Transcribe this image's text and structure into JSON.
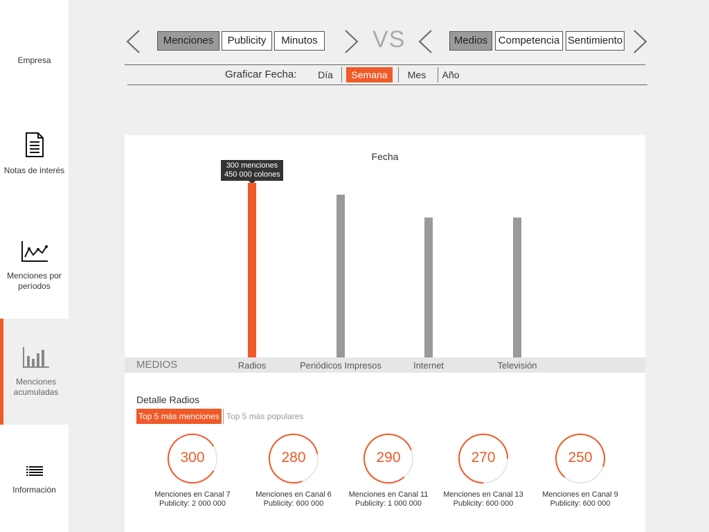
{
  "sidebar": {
    "items": [
      {
        "label": "Empresa"
      },
      {
        "label": "Notas de interés",
        "icon": "document-icon"
      },
      {
        "label": "Menciones por períodos",
        "icon": "line-chart-icon"
      },
      {
        "label": "Menciones acumuladas",
        "icon": "bar-chart-icon",
        "active": true
      },
      {
        "label": "Información",
        "icon": "list-icon"
      }
    ]
  },
  "toggles": {
    "left_group": [
      "Menciones",
      "Publicity",
      "Minutos"
    ],
    "left_selected": "Menciones",
    "vs_label": "VS",
    "right_group": [
      "Medios",
      "Competencia",
      "Sentimiento"
    ],
    "right_selected": "Medios"
  },
  "date_filter": {
    "label": "Graficar Fecha:",
    "options": [
      "Día",
      "Semana",
      "Mes",
      "Año"
    ],
    "selected": "Semana"
  },
  "chart_data": {
    "type": "bar",
    "title": "Fecha",
    "xlabel": "MEDIOS",
    "categories": [
      "Radios",
      "Periódicos Impresos",
      "Internet",
      "Televisión"
    ],
    "values": [
      300,
      280,
      240,
      240
    ],
    "highlight_index": 0,
    "tooltip": {
      "line1": "300 menciones",
      "line2": "450 000 colones"
    },
    "colors": {
      "highlight": "#f05a28",
      "bar": "#9a9a9a"
    }
  },
  "detail": {
    "title": "Detalle Radios",
    "tabs": [
      "Top 5 más menciones",
      "Top 5 más populares"
    ],
    "active_tab": 0,
    "stats": [
      {
        "value": "300",
        "caption": "Menciones en Canal 7",
        "publicity": "Publicity: 2 000 000"
      },
      {
        "value": "280",
        "caption": "Menciones en Canal 6",
        "publicity": "Publicity: 600 000"
      },
      {
        "value": "290",
        "caption": "Menciones en Canal 11",
        "publicity": "Publicity: 1 000 000"
      },
      {
        "value": "270",
        "caption": "Menciones en Canal 13",
        "publicity": "Publicity: 600 000"
      },
      {
        "value": "250",
        "caption": "Menciones en Canal 9",
        "publicity": "Publicity: 600 000"
      }
    ]
  },
  "colors": {
    "accent": "#f05a28",
    "bar_gray": "#9a9a9a"
  }
}
